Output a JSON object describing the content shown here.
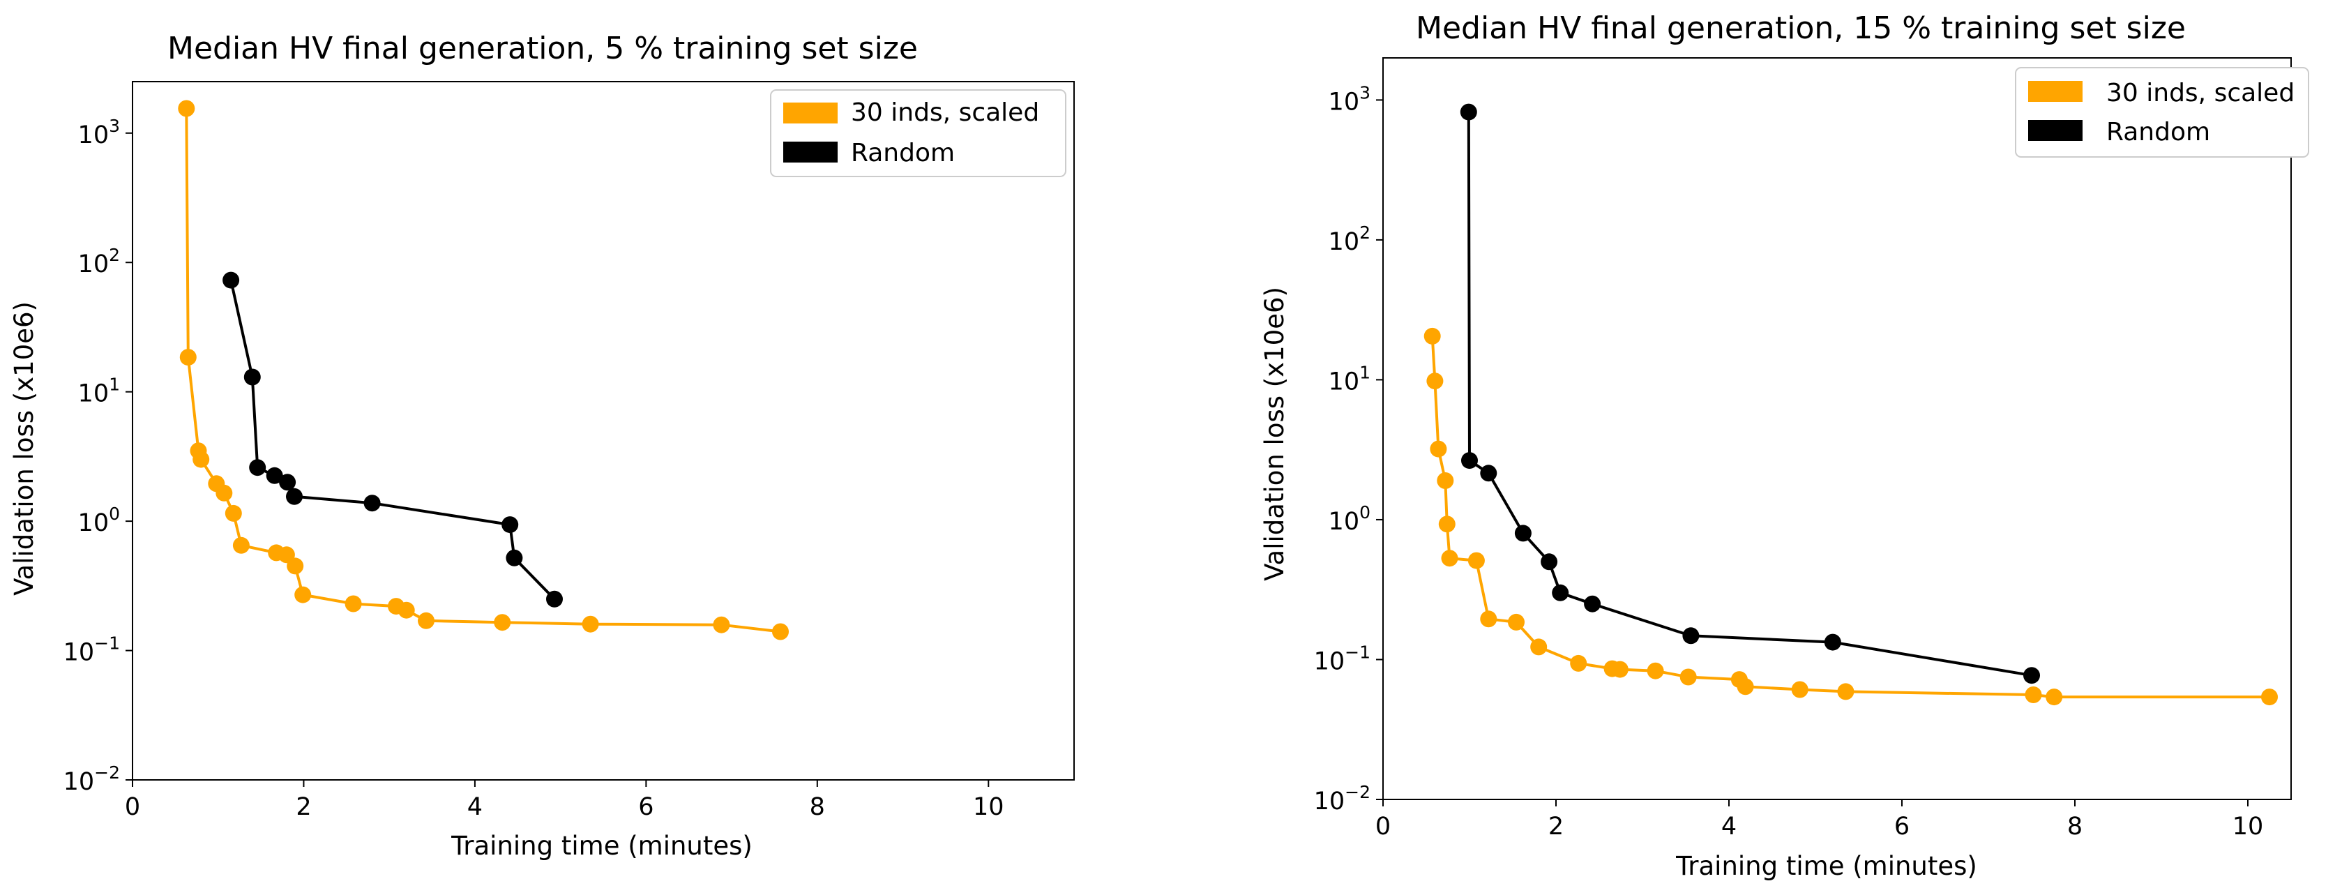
{
  "chart_data": [
    {
      "type": "line",
      "title": "Median HV final generation, 5 % training set size",
      "xlabel": "Training time (minutes)",
      "ylabel": "Validation loss (x10e6)",
      "xscale": "linear",
      "yscale": "log",
      "xlim": [
        0,
        11
      ],
      "ylim": [
        0.01,
        2500
      ],
      "xticks": [
        0,
        2,
        4,
        6,
        8,
        10
      ],
      "xtick_labels": [
        "0",
        "2",
        "4",
        "6",
        "8",
        "10"
      ],
      "yticks": [
        0.01,
        0.1,
        1,
        10,
        100,
        1000
      ],
      "ytick_labels": [
        {
          "base": "10",
          "exp": "−2"
        },
        {
          "base": "10",
          "exp": "−1"
        },
        {
          "base": "10",
          "exp": "0"
        },
        {
          "base": "10",
          "exp": "1"
        },
        {
          "base": "10",
          "exp": "2"
        },
        {
          "base": "10",
          "exp": "3"
        }
      ],
      "legend_position": "top-right",
      "series": [
        {
          "name": "30 inds, scaled",
          "color": "#FFA500",
          "points": [
            [
              0.63,
              1550
            ],
            [
              0.65,
              18.5
            ],
            [
              0.77,
              3.5
            ],
            [
              0.8,
              3.0
            ],
            [
              0.98,
              1.95
            ],
            [
              1.07,
              1.65
            ],
            [
              1.18,
              1.15
            ],
            [
              1.27,
              0.65
            ],
            [
              1.68,
              0.57
            ],
            [
              1.8,
              0.55
            ],
            [
              1.9,
              0.45
            ],
            [
              1.99,
              0.27
            ],
            [
              2.58,
              0.23
            ],
            [
              3.08,
              0.22
            ],
            [
              3.2,
              0.205
            ],
            [
              3.43,
              0.17
            ],
            [
              4.32,
              0.165
            ],
            [
              5.35,
              0.16
            ],
            [
              6.88,
              0.158
            ],
            [
              7.57,
              0.14
            ]
          ]
        },
        {
          "name": "Random",
          "color": "#000000",
          "points": [
            [
              1.15,
              73
            ],
            [
              1.4,
              13
            ],
            [
              1.46,
              2.6
            ],
            [
              1.66,
              2.25
            ],
            [
              1.81,
              2.0
            ],
            [
              1.89,
              1.55
            ],
            [
              2.8,
              1.38
            ],
            [
              4.41,
              0.94
            ],
            [
              4.46,
              0.52
            ],
            [
              4.93,
              0.25
            ]
          ]
        }
      ]
    },
    {
      "type": "line",
      "title": "Median HV final generation, 15 % training set size",
      "xlabel": "Training time (minutes)",
      "ylabel": "Validation loss (x10e6)",
      "xscale": "linear",
      "yscale": "log",
      "xlim": [
        0,
        10.5
      ],
      "ylim": [
        0.01,
        2000
      ],
      "xticks": [
        0,
        2,
        4,
        6,
        8,
        10
      ],
      "xtick_labels": [
        "0",
        "2",
        "4",
        "6",
        "8",
        "10"
      ],
      "yticks": [
        0.01,
        0.1,
        1,
        10,
        100,
        1000
      ],
      "ytick_labels": [
        {
          "base": "10",
          "exp": "−2"
        },
        {
          "base": "10",
          "exp": "−1"
        },
        {
          "base": "10",
          "exp": "0"
        },
        {
          "base": "10",
          "exp": "1"
        },
        {
          "base": "10",
          "exp": "2"
        },
        {
          "base": "10",
          "exp": "3"
        }
      ],
      "legend_position": "top-right",
      "series": [
        {
          "name": "30 inds, scaled",
          "color": "#FFA500",
          "points": [
            [
              0.57,
              20.5
            ],
            [
              0.6,
              9.8
            ],
            [
              0.64,
              3.2
            ],
            [
              0.72,
              1.9
            ],
            [
              0.74,
              0.93
            ],
            [
              0.77,
              0.53
            ],
            [
              1.08,
              0.51
            ],
            [
              1.22,
              0.195
            ],
            [
              1.54,
              0.185
            ],
            [
              1.8,
              0.123
            ],
            [
              2.26,
              0.094
            ],
            [
              2.65,
              0.086
            ],
            [
              2.74,
              0.085
            ],
            [
              3.15,
              0.083
            ],
            [
              3.53,
              0.075
            ],
            [
              4.12,
              0.072
            ],
            [
              4.19,
              0.064
            ],
            [
              4.82,
              0.061
            ],
            [
              5.35,
              0.059
            ],
            [
              7.52,
              0.056
            ],
            [
              7.76,
              0.054
            ],
            [
              10.25,
              0.054
            ]
          ]
        },
        {
          "name": "Random",
          "color": "#000000",
          "points": [
            [
              0.99,
              820
            ],
            [
              1.0,
              2.65
            ],
            [
              1.22,
              2.15
            ],
            [
              1.62,
              0.8
            ],
            [
              1.92,
              0.5
            ],
            [
              2.05,
              0.3
            ],
            [
              2.42,
              0.25
            ],
            [
              3.56,
              0.148
            ],
            [
              5.2,
              0.133
            ],
            [
              7.5,
              0.077
            ]
          ]
        }
      ]
    }
  ]
}
